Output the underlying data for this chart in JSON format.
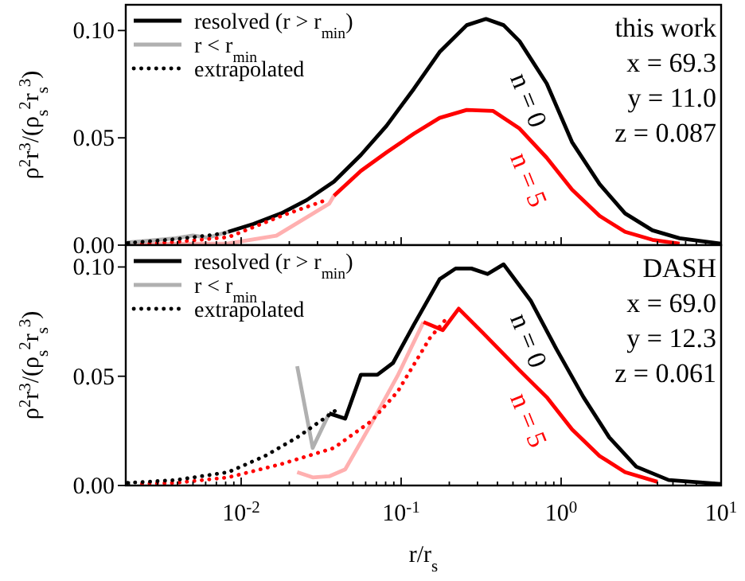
{
  "chart_data": [
    {
      "type": "line",
      "ylabel": "ρ$^{2}$r$^{3}$/(ρ$_{s}$$^{2}$r$_{s}$$^{3}$)",
      "legend": "top left",
      "marker": "none",
      "tick_labels": "y",
      "log": "x",
      "xlim": [
        0.0019,
        10
      ],
      "ylim": [
        0,
        0.112
      ],
      "yticks": [
        {
          "value": 0,
          "label": "0.00"
        },
        {
          "value": 0.05,
          "label": "0.05"
        },
        {
          "value": 0.1,
          "label": "0.10"
        }
      ],
      "xticks": [
        {
          "value": 0.002,
          "label": null
        },
        {
          "value": 0.003,
          "label": null
        },
        {
          "value": 0.004,
          "label": null
        },
        {
          "value": 0.005,
          "label": null
        },
        {
          "value": 0.006,
          "label": null
        },
        {
          "value": 0.007,
          "label": null
        },
        {
          "value": 0.008,
          "label": null
        },
        {
          "value": 0.009,
          "label": null
        },
        {
          "value": 0.01,
          "label": null
        },
        {
          "value": 0.02,
          "label": null
        },
        {
          "value": 0.03,
          "label": null
        },
        {
          "value": 0.04,
          "label": null
        },
        {
          "value": 0.05,
          "label": null
        },
        {
          "value": 0.06,
          "label": null
        },
        {
          "value": 0.07,
          "label": null
        },
        {
          "value": 0.08,
          "label": null
        },
        {
          "value": 0.09,
          "label": null
        },
        {
          "value": 0.1,
          "label": null
        },
        {
          "value": 0.2,
          "label": null
        },
        {
          "value": 0.3,
          "label": null
        },
        {
          "value": 0.4,
          "label": null
        },
        {
          "value": 0.5,
          "label": null
        },
        {
          "value": 0.6,
          "label": null
        },
        {
          "value": 0.7,
          "label": null
        },
        {
          "value": 0.8,
          "label": null
        },
        {
          "value": 0.9,
          "label": null
        },
        {
          "value": 1,
          "label": null
        },
        {
          "value": 2,
          "label": null
        },
        {
          "value": 3,
          "label": null
        },
        {
          "value": 4,
          "label": null
        },
        {
          "value": 5,
          "label": null
        },
        {
          "value": 6,
          "label": null
        },
        {
          "value": 7,
          "label": null
        },
        {
          "value": 8,
          "label": null
        },
        {
          "value": 9,
          "label": null
        },
        {
          "value": 10,
          "label": null
        }
      ],
      "annotations": [
        "n = 0",
        "n = 5",
        "this work",
        "x = 69.3",
        "y = 11.0",
        "z = 0.087"
      ],
      "series": [
        {
          "name": "resolved (r > r$_{min}$)",
          "color": "#000000",
          "line_style": "solid",
          "x": [
            0.0083,
            0.012,
            0.0178,
            0.0257,
            0.038,
            0.056,
            0.081,
            0.12,
            0.174,
            0.257,
            0.339,
            0.437,
            0.55,
            0.813,
            1.17,
            1.74,
            2.51,
            3.72,
            5.5,
            10
          ],
          "values": [
            0.0062,
            0.0099,
            0.0148,
            0.021,
            0.0296,
            0.042,
            0.0556,
            0.0728,
            0.09,
            0.1025,
            0.1054,
            0.1025,
            0.095,
            0.0753,
            0.048,
            0.0284,
            0.0148,
            0.0069,
            0.0032,
            0.0007
          ]
        },
        {
          "name": "r < r$_{min}$",
          "color": "#b0b0b0",
          "line_style": "solid",
          "x": [
            0.00195,
            0.0039,
            0.005,
            0.0062,
            0.0083
          ],
          "values": [
            0.0012,
            0.0032,
            0.0045,
            0.0035,
            0.0062
          ]
        },
        {
          "name": "extrapolated",
          "color": "#000000",
          "line_style": "dotted",
          "x": [
            0.00195,
            0.0039,
            0.0062,
            0.0083
          ],
          "values": [
            0.001,
            0.0028,
            0.0045,
            0.0058
          ]
        },
        {
          "color": "#ff0000",
          "line_style": "solid",
          "x": [
            0.038,
            0.056,
            0.081,
            0.12,
            0.174,
            0.257,
            0.376,
            0.55,
            0.813,
            1.17,
            1.74,
            2.51,
            3.72,
            5.5
          ],
          "values": [
            0.023,
            0.0346,
            0.0432,
            0.0519,
            0.0593,
            0.063,
            0.0625,
            0.0543,
            0.0407,
            0.0259,
            0.0136,
            0.0062,
            0.0025,
            0.0007
          ]
        },
        {
          "color": "#ffb0b0",
          "line_style": "solid",
          "x": [
            0.00195,
            0.0083,
            0.0166,
            0.0355,
            0.038
          ],
          "values": [
            0.0005,
            0.0008,
            0.0044,
            0.0193,
            0.023
          ]
        },
        {
          "color": "#ff0000",
          "line_style": "dotted",
          "x": [
            0.0024,
            0.0039,
            0.0083,
            0.0178,
            0.0355
          ],
          "values": [
            0.0006,
            0.0015,
            0.0037,
            0.0136,
            0.0215
          ]
        }
      ]
    },
    {
      "type": "line",
      "ylabel": "ρ$^{2}$r$^{3}$/(ρ$_{s}$$^{2}$r$_{s}$$^{3}$)",
      "xlabel": "r/r$_{s}$",
      "legend": "top left",
      "marker": "none",
      "log": "x",
      "xlim": [
        0.0019,
        10
      ],
      "ylim": [
        0,
        0.11
      ],
      "yticks": [
        {
          "value": 0,
          "label": "0.00"
        },
        {
          "value": 0.05,
          "label": "0.05"
        },
        {
          "value": 0.1,
          "label": "0.10"
        }
      ],
      "xticks": [
        {
          "value": 0.002,
          "label": null
        },
        {
          "value": 0.003,
          "label": null
        },
        {
          "value": 0.004,
          "label": null
        },
        {
          "value": 0.005,
          "label": null
        },
        {
          "value": 0.006,
          "label": null
        },
        {
          "value": 0.007,
          "label": null
        },
        {
          "value": 0.008,
          "label": null
        },
        {
          "value": 0.009,
          "label": null
        },
        {
          "value": 0.01,
          "label": "10$^{-2}$"
        },
        {
          "value": 0.02,
          "label": null
        },
        {
          "value": 0.03,
          "label": null
        },
        {
          "value": 0.04,
          "label": null
        },
        {
          "value": 0.05,
          "label": null
        },
        {
          "value": 0.06,
          "label": null
        },
        {
          "value": 0.07,
          "label": null
        },
        {
          "value": 0.08,
          "label": null
        },
        {
          "value": 0.09,
          "label": null
        },
        {
          "value": 0.1,
          "label": "10$^{-1}$"
        },
        {
          "value": 0.2,
          "label": null
        },
        {
          "value": 0.3,
          "label": null
        },
        {
          "value": 0.4,
          "label": null
        },
        {
          "value": 0.5,
          "label": null
        },
        {
          "value": 0.6,
          "label": null
        },
        {
          "value": 0.7,
          "label": null
        },
        {
          "value": 0.8,
          "label": null
        },
        {
          "value": 0.9,
          "label": null
        },
        {
          "value": 1,
          "label": "10$^{0}$"
        },
        {
          "value": 2,
          "label": null
        },
        {
          "value": 3,
          "label": null
        },
        {
          "value": 4,
          "label": null
        },
        {
          "value": 5,
          "label": null
        },
        {
          "value": 6,
          "label": null
        },
        {
          "value": 7,
          "label": null
        },
        {
          "value": 8,
          "label": null
        },
        {
          "value": 9,
          "label": null
        },
        {
          "value": 10,
          "label": "10$^{1}$"
        }
      ],
      "annotations": [
        "n = 0",
        "n = 5",
        "DASH",
        "x = 69.0",
        "y = 12.3",
        "z = 0.061"
      ],
      "series": [
        {
          "name": "resolved (r > r$_{min}$)",
          "color": "#000000",
          "line_style": "solid",
          "x": [
            0.0355,
            0.0447,
            0.056,
            0.071,
            0.089,
            0.12,
            0.174,
            0.219,
            0.275,
            0.347,
            0.437,
            0.645,
            0.933,
            1.38,
            2.0,
            2.95,
            4.7,
            10
          ],
          "values": [
            0.033,
            0.0306,
            0.0507,
            0.0507,
            0.0561,
            0.0735,
            0.0944,
            0.0993,
            0.0993,
            0.0968,
            0.1012,
            0.0846,
            0.0625,
            0.0404,
            0.022,
            0.0086,
            0.0025,
            0.0007
          ]
        },
        {
          "name": "r < r$_{min}$",
          "color": "#b0b0b0",
          "line_style": "solid",
          "x": [
            0.0224,
            0.028,
            0.0355
          ],
          "values": [
            0.0546,
            0.0172,
            0.033
          ]
        },
        {
          "name": "extrapolated",
          "color": "#000000",
          "line_style": "dotted",
          "x": [
            0.00195,
            0.0039,
            0.0083,
            0.0141,
            0.0224,
            0.041
          ],
          "values": [
            0.0012,
            0.0025,
            0.0061,
            0.0135,
            0.022,
            0.0355
          ]
        },
        {
          "color": "#ff0000",
          "line_style": "solid",
          "x": [
            0.138,
            0.182,
            0.229,
            0.324,
            0.55,
            0.813,
            1.17,
            1.74,
            2.51,
            4.0
          ],
          "values": [
            0.0748,
            0.0711,
            0.0809,
            0.0699,
            0.0527,
            0.0404,
            0.0257,
            0.0135,
            0.0061,
            0.0017
          ]
        },
        {
          "color": "#ffb0b0",
          "line_style": "solid",
          "x": [
            0.0224,
            0.028,
            0.0355,
            0.0447,
            0.065,
            0.095,
            0.138
          ],
          "values": [
            0.0061,
            0.0037,
            0.0042,
            0.0074,
            0.0282,
            0.0502,
            0.0748
          ]
        },
        {
          "color": "#ff0000",
          "line_style": "dotted",
          "x": [
            0.0024,
            0.0039,
            0.0083,
            0.0178,
            0.038,
            0.065,
            0.095,
            0.151,
            0.19
          ],
          "values": [
            0.0008,
            0.0012,
            0.0037,
            0.0098,
            0.0172,
            0.0294,
            0.0429,
            0.0674,
            0.076
          ]
        }
      ]
    }
  ]
}
